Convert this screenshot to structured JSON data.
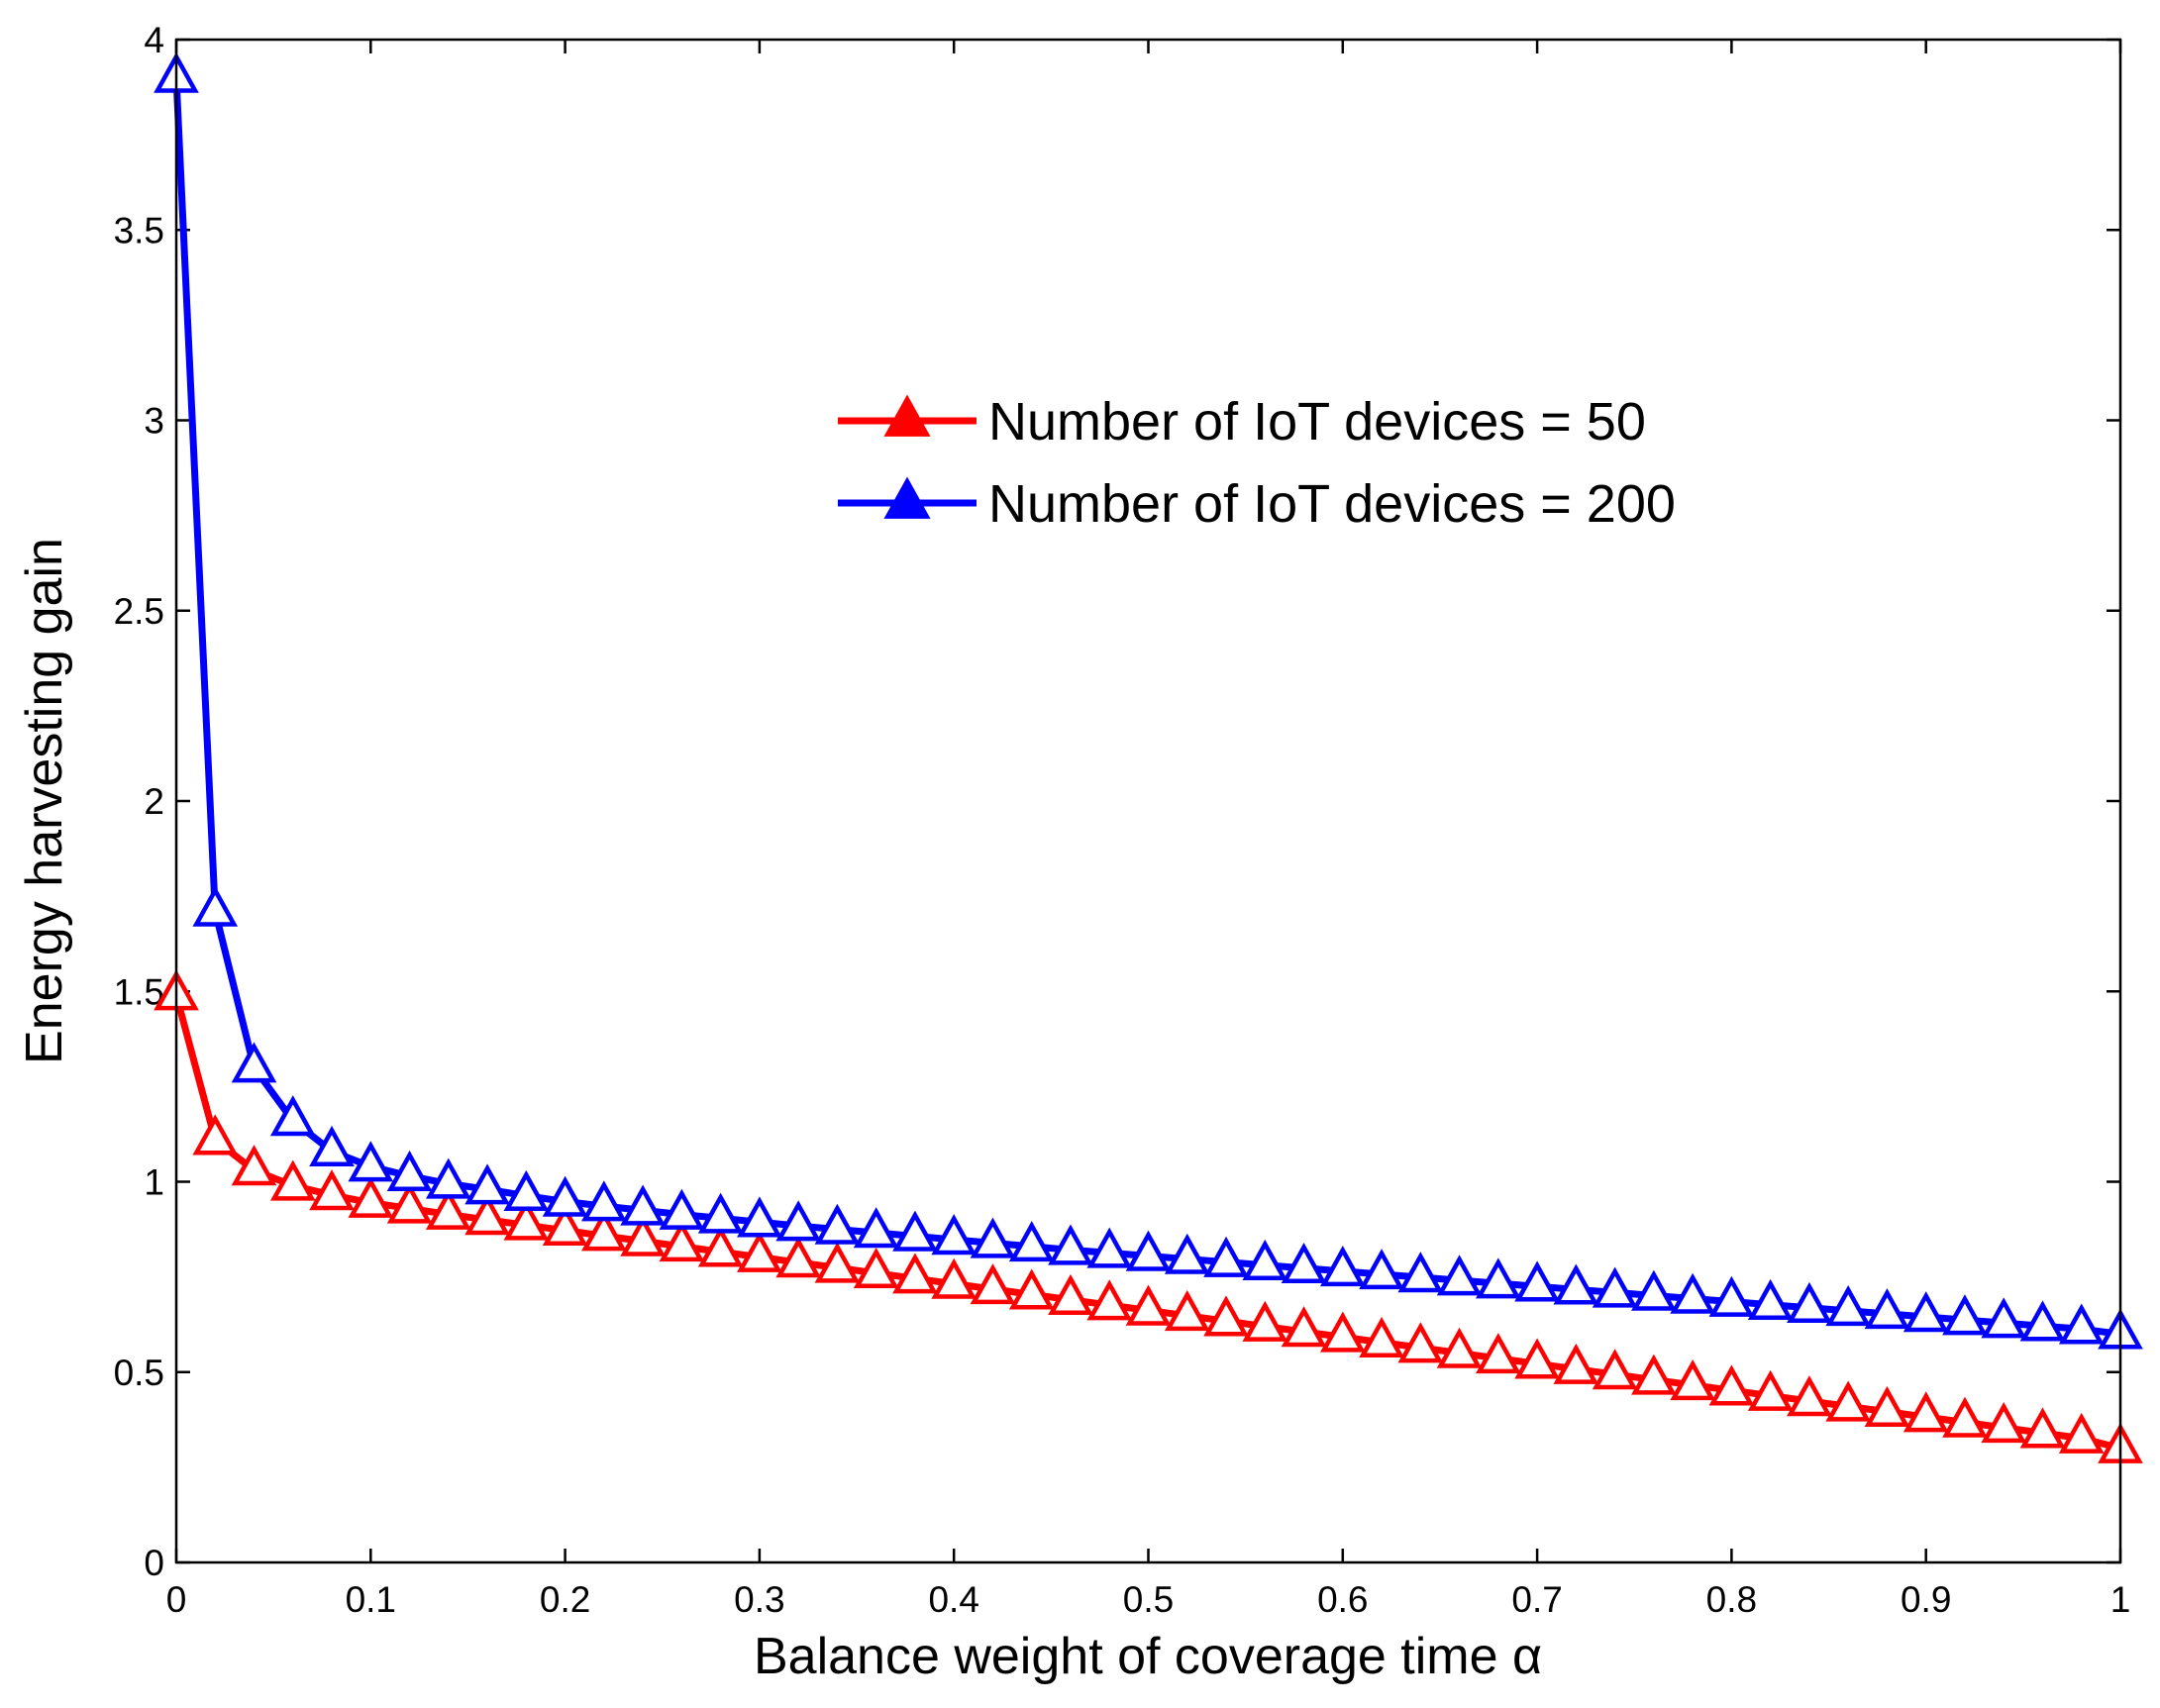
{
  "chart_data": {
    "type": "line",
    "title": "",
    "xlabel": "Balance weight of coverage time α",
    "ylabel": "Energy harvesting gain",
    "xlim": [
      0,
      1
    ],
    "ylim": [
      0,
      4
    ],
    "xticks": [
      "0",
      "0.1",
      "0.2",
      "0.3",
      "0.4",
      "0.5",
      "0.6",
      "0.7",
      "0.8",
      "0.9",
      "1"
    ],
    "yticks": [
      "0",
      "0.5",
      "1",
      "1.5",
      "2",
      "2.5",
      "3",
      "3.5",
      "4"
    ],
    "grid": false,
    "legend_position": "upper-center-right",
    "x": [
      0,
      0.02,
      0.04,
      0.06,
      0.08,
      0.1,
      0.12,
      0.14,
      0.16,
      0.18,
      0.2,
      0.22,
      0.24,
      0.26,
      0.28,
      0.3,
      0.32,
      0.34,
      0.36,
      0.38,
      0.4,
      0.42,
      0.44,
      0.46,
      0.48,
      0.5,
      0.52,
      0.54,
      0.56,
      0.58,
      0.6,
      0.62,
      0.64,
      0.66,
      0.68,
      0.7,
      0.72,
      0.74,
      0.76,
      0.78,
      0.8,
      0.82,
      0.84,
      0.86,
      0.88,
      0.9,
      0.92,
      0.94,
      0.96,
      0.98,
      1.0
    ],
    "series": [
      {
        "name": "Number of IoT devices = 50",
        "color": "#ff0000",
        "marker": "triangle",
        "values": [
          1.49,
          1.11,
          1.03,
          0.99,
          0.965,
          0.945,
          0.93,
          0.914,
          0.9,
          0.886,
          0.872,
          0.858,
          0.844,
          0.83,
          0.816,
          0.802,
          0.788,
          0.774,
          0.76,
          0.746,
          0.732,
          0.718,
          0.704,
          0.69,
          0.676,
          0.662,
          0.648,
          0.634,
          0.62,
          0.606,
          0.592,
          0.578,
          0.564,
          0.55,
          0.536,
          0.522,
          0.508,
          0.494,
          0.48,
          0.466,
          0.452,
          0.438,
          0.424,
          0.41,
          0.396,
          0.382,
          0.368,
          0.354,
          0.34,
          0.326,
          0.3
        ]
      },
      {
        "name": "Number of IoT devices = 200",
        "color": "#0000ff",
        "marker": "triangle",
        "values": [
          3.9,
          1.71,
          1.3,
          1.16,
          1.08,
          1.04,
          1.015,
          0.995,
          0.98,
          0.963,
          0.948,
          0.936,
          0.925,
          0.914,
          0.904,
          0.894,
          0.884,
          0.875,
          0.866,
          0.857,
          0.848,
          0.839,
          0.83,
          0.821,
          0.813,
          0.805,
          0.797,
          0.789,
          0.781,
          0.773,
          0.765,
          0.757,
          0.749,
          0.741,
          0.733,
          0.725,
          0.717,
          0.709,
          0.701,
          0.693,
          0.685,
          0.677,
          0.669,
          0.661,
          0.653,
          0.645,
          0.637,
          0.629,
          0.621,
          0.613,
          0.6
        ]
      }
    ]
  }
}
